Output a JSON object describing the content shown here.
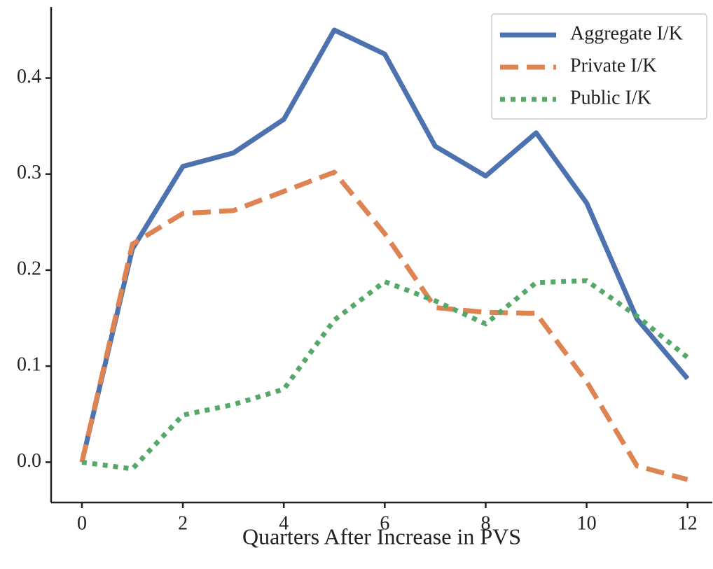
{
  "chart_data": {
    "type": "line",
    "x_label": "Quarters After Increase in PVS",
    "x": [
      0,
      1,
      2,
      3,
      4,
      5,
      6,
      7,
      8,
      9,
      10,
      11,
      12
    ],
    "series": [
      {
        "name": "Aggregate I/K",
        "color": "#4c72b0",
        "linestyle": "solid",
        "values": [
          0,
          0.222,
          0.308,
          0.322,
          0.357,
          0.45,
          0.425,
          0.329,
          0.298,
          0.343,
          0.27,
          0.149,
          0.087
        ]
      },
      {
        "name": "Private I/K",
        "color": "#dd8452",
        "linestyle": "dashed",
        "values": [
          0,
          0.227,
          0.259,
          0.262,
          0.282,
          0.302,
          0.238,
          0.161,
          0.156,
          0.155,
          0.084,
          -0.004,
          -0.018
        ]
      },
      {
        "name": "Public I/K",
        "color": "#55a868",
        "linestyle": "dotted",
        "values": [
          0,
          -0.007,
          0.049,
          0.06,
          0.076,
          0.148,
          0.188,
          0.168,
          0.144,
          0.187,
          0.189,
          0.152,
          0.109
        ]
      }
    ],
    "xlim": [
      -0.61,
      12.49
    ],
    "ylim": [
      -0.042,
      0.474
    ],
    "xticks": [
      0,
      2,
      4,
      6,
      8,
      10,
      12
    ],
    "yticks": [
      {
        "value": 0,
        "label": "0.0"
      },
      0.1,
      0.2,
      0.3,
      0.4
    ],
    "grid": false,
    "legend": "upper right"
  }
}
